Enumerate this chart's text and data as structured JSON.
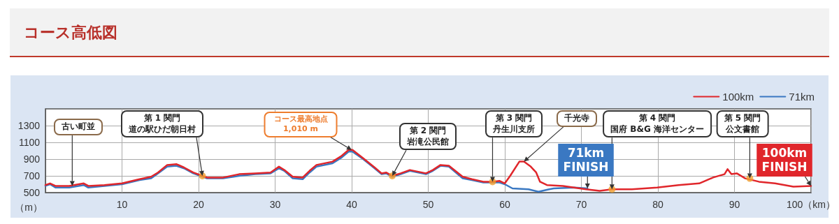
{
  "chart_data": {
    "type": "line",
    "title": "コース高低図",
    "ylabel": "（m）",
    "xlim": [
      0,
      100
    ],
    "xticks": [
      10,
      20,
      30,
      40,
      50,
      60,
      70,
      80,
      90,
      {
        "value": 100,
        "label": "100（km）"
      }
    ],
    "ylim": [
      500,
      1500
    ],
    "yticks": [
      500,
      700,
      900,
      1100,
      1300
    ],
    "grid": true,
    "legend": "top right",
    "marker": "none",
    "line_style": "solid",
    "series": [
      {
        "name": "100km",
        "color": "#e0262b",
        "x": [
          0,
          0.6,
          1.3,
          3.1,
          5.0,
          5.6,
          7.7,
          10,
          12.3,
          13.8,
          14.7,
          15.9,
          17.1,
          18.1,
          19.3,
          20.5,
          21.1,
          23.2,
          25.3,
          27.4,
          29.4,
          30.5,
          31.2,
          32.3,
          33.6,
          34.5,
          35.4,
          37.5,
          38.7,
          39.6,
          40.1,
          41.5,
          43.0,
          43.9,
          44.5,
          45.3,
          46.4,
          47.6,
          49.7,
          50.6,
          51.6,
          52.7,
          54.5,
          55.7,
          57.2,
          58.4,
          59.3,
          60.0,
          60.7,
          61.9,
          62.5,
          63.4,
          64.1,
          64.6,
          65.5,
          67.6,
          70.6,
          72.4,
          74.0,
          76.6,
          79.9,
          82.7,
          85.4,
          87.2,
          88.7,
          89.1,
          89.6,
          90.3,
          91.4,
          93.2,
          95.3,
          97.7,
          100
        ],
        "values": [
          590,
          610,
          580,
          580,
          610,
          580,
          590,
          610,
          660,
          690,
          740,
          830,
          840,
          800,
          740,
          700,
          680,
          680,
          720,
          730,
          740,
          810,
          770,
          690,
          680,
          760,
          830,
          870,
          940,
          1010,
          1010,
          910,
          800,
          730,
          740,
          700,
          730,
          770,
          730,
          770,
          830,
          820,
          690,
          660,
          630,
          630,
          640,
          610,
          700,
          870,
          870,
          810,
          740,
          630,
          590,
          580,
          540,
          520,
          540,
          540,
          560,
          590,
          610,
          680,
          720,
          780,
          720,
          730,
          670,
          630,
          610,
          570,
          580
        ]
      },
      {
        "name": "71km",
        "color": "#3a78c2",
        "x": [
          0,
          0.6,
          1.3,
          3.1,
          5.0,
          5.6,
          7.7,
          10,
          12.3,
          13.8,
          14.7,
          15.9,
          17.1,
          18.1,
          19.3,
          20.5,
          21.1,
          23.2,
          25.3,
          27.4,
          29.4,
          30.5,
          31.2,
          32.3,
          33.6,
          34.5,
          35.4,
          37.5,
          38.7,
          39.6,
          40.1,
          41.5,
          43.0,
          43.9,
          44.5,
          45.3,
          46.4,
          47.6,
          49.7,
          50.6,
          51.6,
          52.7,
          54.5,
          55.7,
          57.2,
          58.4,
          59.3,
          60.0,
          61.0,
          63.1,
          64.4,
          65.8,
          66.4,
          69.1,
          70.8
        ],
        "values": [
          580,
          600,
          560,
          560,
          590,
          560,
          580,
          600,
          650,
          670,
          730,
          810,
          820,
          790,
          730,
          690,
          670,
          670,
          700,
          720,
          730,
          790,
          760,
          670,
          660,
          740,
          810,
          850,
          920,
          990,
          990,
          900,
          790,
          720,
          730,
          690,
          720,
          760,
          720,
          760,
          820,
          810,
          670,
          650,
          620,
          620,
          620,
          600,
          550,
          540,
          510,
          540,
          550,
          560,
          550
        ]
      },
      {
        "type": "scatter",
        "marker": "circle",
        "color": "#f0a030",
        "x": [
          20.5,
          45.3,
          58.4,
          74.0,
          92.0
        ],
        "values": [
          700,
          700,
          630,
          540,
          670
        ]
      }
    ],
    "annotations": [
      {
        "text": "古い町並",
        "x": 3.5,
        "y": 580
      },
      {
        "text": "第 1 関門道の駅ひだ朝日村",
        "x": 20.5,
        "y": 700
      },
      {
        "text": "コース最高地点\n1,010 m",
        "x": 40,
        "y": 1010
      },
      {
        "text": "第 2 関門岩滝公民館",
        "x": 45.3,
        "y": 700
      },
      {
        "text": "第 3 関門丹生川支所",
        "x": 58.4,
        "y": 630
      },
      {
        "text": "千光寺",
        "x": 62.5,
        "y": 870
      },
      {
        "text": "第 4 関門国府 B&G 海洋センター",
        "x": 74,
        "y": 540
      },
      {
        "text": "第 5 関門公文書館",
        "x": 92,
        "y": 670
      },
      {
        "text": "71km\nFINISH",
        "x": 70.8,
        "y": 550
      },
      {
        "text": "100km\nFINISH",
        "x": 100,
        "y": 580
      }
    ]
  }
}
